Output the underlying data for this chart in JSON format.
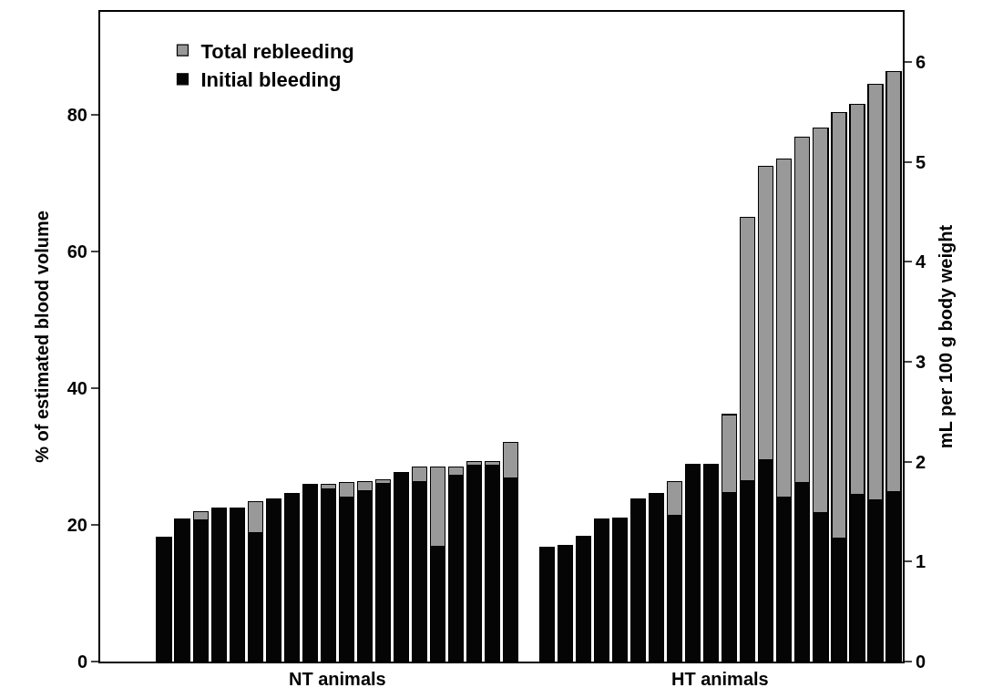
{
  "chart_data": {
    "type": "bar",
    "stacked": true,
    "ylabel": "% of estimated blood volume",
    "y2label": "mL per 100 g body weight",
    "categories": [
      null,
      null,
      null,
      null,
      null,
      null,
      null,
      null,
      null,
      null,
      null,
      null,
      null,
      null,
      null,
      null,
      null,
      null,
      null,
      null,
      null,
      null,
      null,
      null,
      null,
      null,
      null,
      null,
      null,
      null,
      null,
      null,
      null,
      null,
      null,
      null,
      null,
      null,
      null,
      null,
      null,
      null,
      null,
      null
    ],
    "series": [
      {
        "name": "Initial bleeding",
        "color": "#050505",
        "values": [
          null,
          null,
          null,
          18.2,
          20.9,
          20.7,
          22.4,
          22.5,
          18.9,
          23.8,
          24.6,
          25.9,
          25.2,
          24.1,
          25.0,
          26.1,
          27.6,
          26.3,
          16.9,
          27.3,
          28.7,
          28.7,
          26.9,
          null,
          16.7,
          17.0,
          18.3,
          20.9,
          21.0,
          23.8,
          24.6,
          21.4,
          28.9,
          28.9,
          24.7,
          26.5,
          29.5,
          24.1,
          26.2,
          21.8,
          18.0,
          24.5,
          23.6,
          24.8
        ]
      },
      {
        "name": "Total rebleeding",
        "color": "#999999",
        "values": [
          null,
          null,
          null,
          null,
          null,
          1.2,
          null,
          null,
          4.5,
          null,
          null,
          null,
          0.7,
          2.1,
          1.3,
          0.5,
          null,
          2.2,
          11.6,
          1.2,
          0.5,
          0.5,
          5.1,
          null,
          null,
          null,
          null,
          null,
          null,
          null,
          null,
          4.9,
          null,
          null,
          11.4,
          38.5,
          42.9,
          49.4,
          50.5,
          56.2,
          62.3,
          57.0,
          60.8,
          61.5
        ]
      }
    ],
    "annotations": [
      "NT animals",
      "HT animals"
    ],
    "ylim": [
      0,
      95
    ],
    "yticks": [
      0,
      20,
      40,
      60,
      80
    ],
    "y2lim": [
      0,
      6.5
    ],
    "y2ticks": [
      0,
      1,
      2,
      3,
      4,
      5,
      6
    ],
    "legend": "top left"
  }
}
